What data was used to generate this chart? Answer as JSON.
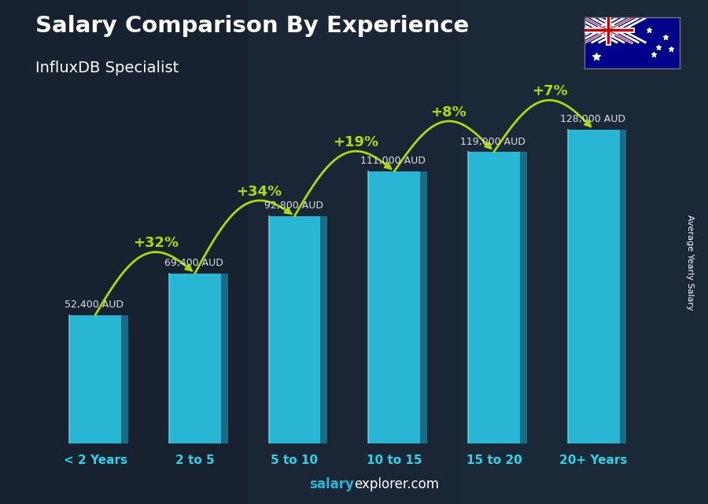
{
  "categories": [
    "< 2 Years",
    "2 to 5",
    "5 to 10",
    "10 to 15",
    "15 to 20",
    "20+ Years"
  ],
  "values": [
    52400,
    69400,
    92800,
    111000,
    119000,
    128000
  ],
  "salary_labels": [
    "52,400 AUD",
    "69,400 AUD",
    "92,800 AUD",
    "111,000 AUD",
    "119,000 AUD",
    "128,000 AUD"
  ],
  "pct_changes": [
    null,
    "+32%",
    "+34%",
    "+19%",
    "+8%",
    "+7%"
  ],
  "title_main": "Salary Comparison By Experience",
  "title_sub": "InfluxDB Specialist",
  "ylabel_rotated": "Average Yearly Salary",
  "bar_color": "#29b6d4",
  "bar_left_color": "#1a8faa",
  "bar_top_color": "#50d0e8",
  "bg_color": "#1c2a38",
  "text_color_white": "#ffffff",
  "text_color_salary": "#e0e0e0",
  "arrow_color": "#aadd00",
  "pct_color": "#aadd00",
  "xlabel_color": "#29d4e8",
  "footer_color_bold": "#29b6d4",
  "footer_color_normal": "#ffffff",
  "ylim_max": 148000,
  "bar_width": 0.52,
  "n_bars": 6
}
